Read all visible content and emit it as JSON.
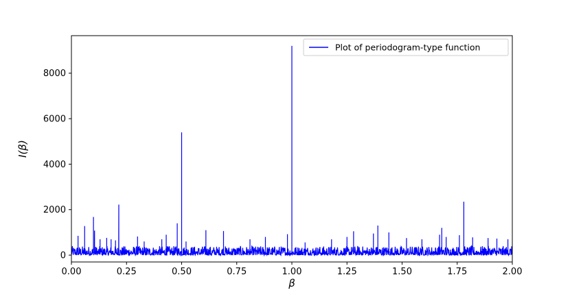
{
  "chart_data": {
    "type": "line",
    "title": "",
    "xlabel": "β",
    "ylabel": "I(β)",
    "xlim": [
      0.0,
      2.0
    ],
    "ylim": [
      -300,
      9650
    ],
    "x_ticks": [
      "0.00",
      "0.25",
      "0.50",
      "0.75",
      "1.00",
      "1.25",
      "1.50",
      "1.75",
      "2.00"
    ],
    "y_ticks": [
      "0",
      "2000",
      "4000",
      "6000",
      "8000"
    ],
    "grid": false,
    "legend_position": "top-right",
    "series": [
      {
        "name": "Plot of periodogram-type function",
        "color": "#0000ff",
        "peaks": [
          {
            "x": 0.03,
            "y": 850
          },
          {
            "x": 0.06,
            "y": 1280
          },
          {
            "x": 0.1,
            "y": 1680
          },
          {
            "x": 0.105,
            "y": 1080
          },
          {
            "x": 0.13,
            "y": 700
          },
          {
            "x": 0.16,
            "y": 760
          },
          {
            "x": 0.18,
            "y": 700
          },
          {
            "x": 0.2,
            "y": 650
          },
          {
            "x": 0.215,
            "y": 2220
          },
          {
            "x": 0.3,
            "y": 820
          },
          {
            "x": 0.33,
            "y": 600
          },
          {
            "x": 0.41,
            "y": 700
          },
          {
            "x": 0.43,
            "y": 900
          },
          {
            "x": 0.48,
            "y": 1400
          },
          {
            "x": 0.5,
            "y": 5400
          },
          {
            "x": 0.52,
            "y": 600
          },
          {
            "x": 0.61,
            "y": 1100
          },
          {
            "x": 0.69,
            "y": 1060
          },
          {
            "x": 0.81,
            "y": 700
          },
          {
            "x": 0.88,
            "y": 800
          },
          {
            "x": 0.98,
            "y": 920
          },
          {
            "x": 1.0,
            "y": 9200
          },
          {
            "x": 1.06,
            "y": 560
          },
          {
            "x": 1.18,
            "y": 700
          },
          {
            "x": 1.25,
            "y": 800
          },
          {
            "x": 1.28,
            "y": 1050
          },
          {
            "x": 1.37,
            "y": 950
          },
          {
            "x": 1.39,
            "y": 1300
          },
          {
            "x": 1.44,
            "y": 1000
          },
          {
            "x": 1.52,
            "y": 750
          },
          {
            "x": 1.59,
            "y": 700
          },
          {
            "x": 1.67,
            "y": 900
          },
          {
            "x": 1.68,
            "y": 1200
          },
          {
            "x": 1.7,
            "y": 800
          },
          {
            "x": 1.76,
            "y": 880
          },
          {
            "x": 1.78,
            "y": 2350
          },
          {
            "x": 1.82,
            "y": 780
          },
          {
            "x": 1.89,
            "y": 750
          },
          {
            "x": 1.93,
            "y": 730
          },
          {
            "x": 1.98,
            "y": 700
          }
        ],
        "noise_floor_max": 400
      }
    ]
  }
}
